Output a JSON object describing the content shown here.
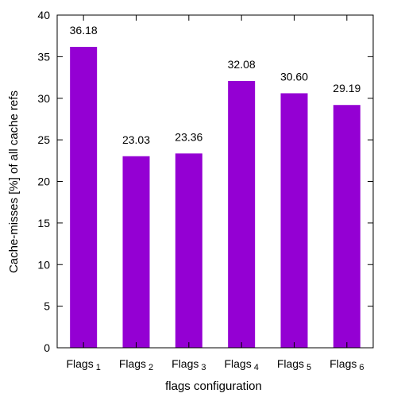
{
  "chart_data": {
    "type": "bar",
    "categories": [
      {
        "base": "Flags",
        "sub": "1"
      },
      {
        "base": "Flags",
        "sub": "2"
      },
      {
        "base": "Flags",
        "sub": "3"
      },
      {
        "base": "Flags",
        "sub": "4"
      },
      {
        "base": "Flags",
        "sub": "5"
      },
      {
        "base": "Flags",
        "sub": "6"
      }
    ],
    "values": [
      36.18,
      23.03,
      23.36,
      32.08,
      30.6,
      29.19
    ],
    "data_labels": [
      "36.18",
      "23.03",
      "23.36",
      "32.08",
      "30.60",
      "29.19"
    ],
    "title": "",
    "xlabel": "flags configuration",
    "ylabel": "Cache-misses [%] of all cache refs",
    "ylim": [
      0,
      40
    ],
    "yticks": [
      0,
      5,
      10,
      15,
      20,
      25,
      30,
      35,
      40
    ],
    "grid": false,
    "legend": "none",
    "bar_color": "#9400d3",
    "axis_color": "#000000"
  }
}
